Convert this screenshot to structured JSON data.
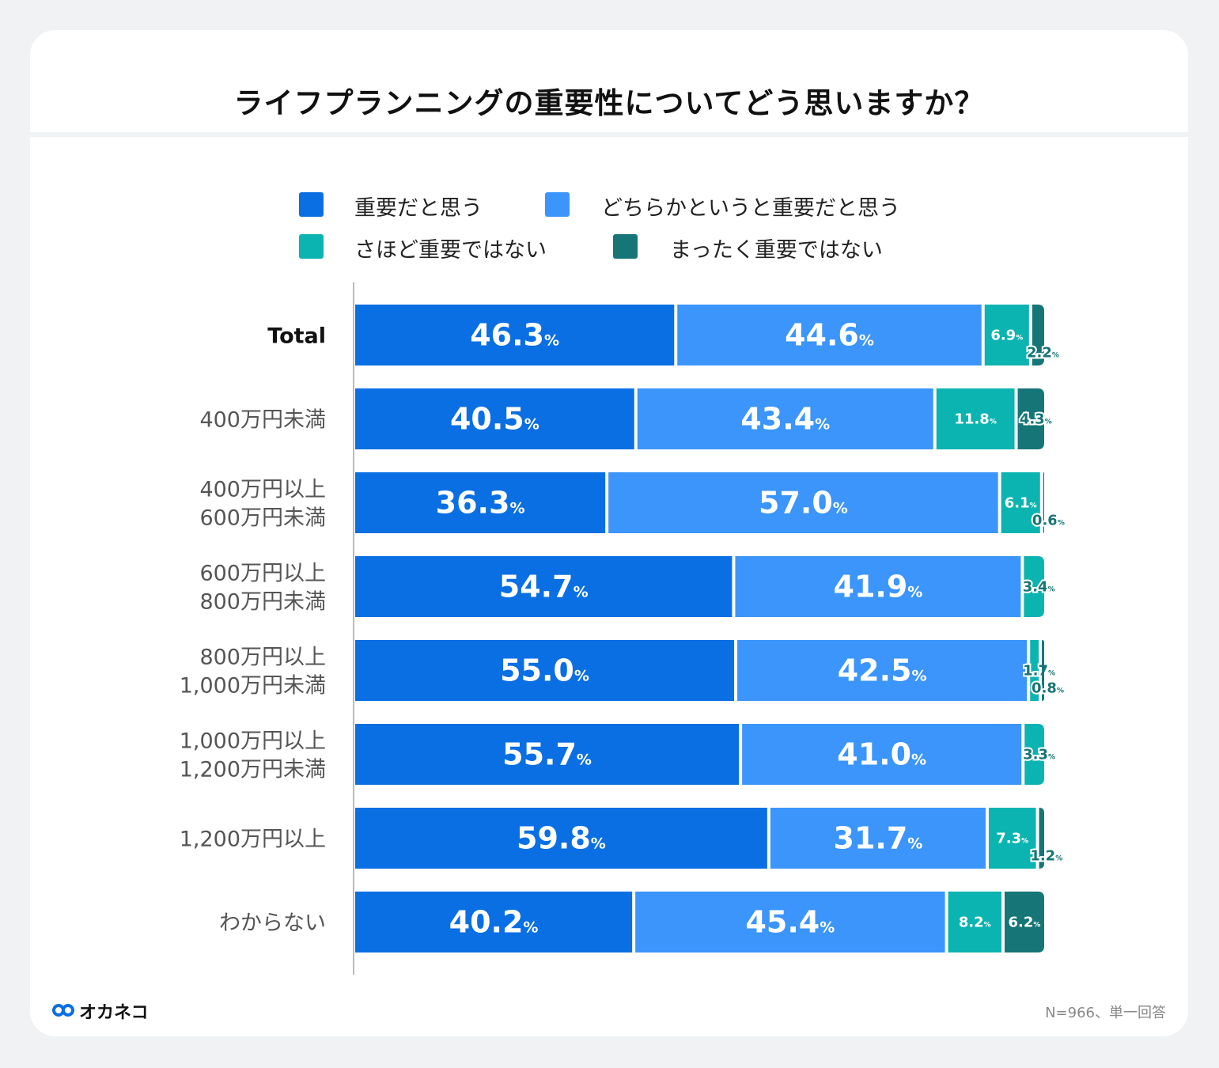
{
  "chart_data": {
    "type": "bar",
    "orientation": "horizontal-stacked-100",
    "title": "ライフプランニングの重要性についてどう思いますか？",
    "categories": [
      "Total",
      "400万円未満",
      "400万円以上\n600万円未満",
      "600万円以上\n800万円未満",
      "800万円以上\n1,000万円未満",
      "1,000万円以上\n1,200万円未満",
      "1,200万円以上",
      "わからない"
    ],
    "series": [
      {
        "name": "重要だと思う",
        "color": "#0a6fe3",
        "values": [
          46.3,
          40.5,
          36.3,
          54.7,
          55.0,
          55.7,
          59.8,
          40.2
        ]
      },
      {
        "name": "どちらかというと重要だと思う",
        "color": "#3b95fb",
        "values": [
          44.6,
          43.4,
          57.0,
          41.9,
          42.5,
          41.0,
          31.7,
          45.4
        ]
      },
      {
        "name": "さほど重要ではない",
        "color": "#0bb4b1",
        "values": [
          6.9,
          11.8,
          6.1,
          3.4,
          1.7,
          3.3,
          7.3,
          8.2
        ]
      },
      {
        "name": "まったく重要ではない",
        "color": "#167576",
        "values": [
          2.2,
          4.3,
          0.6,
          0,
          0.8,
          0,
          1.2,
          6.2
        ]
      }
    ],
    "unit": "%",
    "xlim": [
      0,
      100
    ],
    "legend_position": "top"
  },
  "footer": {
    "brand": "オカネコ",
    "note": "N=966、単一回答"
  }
}
